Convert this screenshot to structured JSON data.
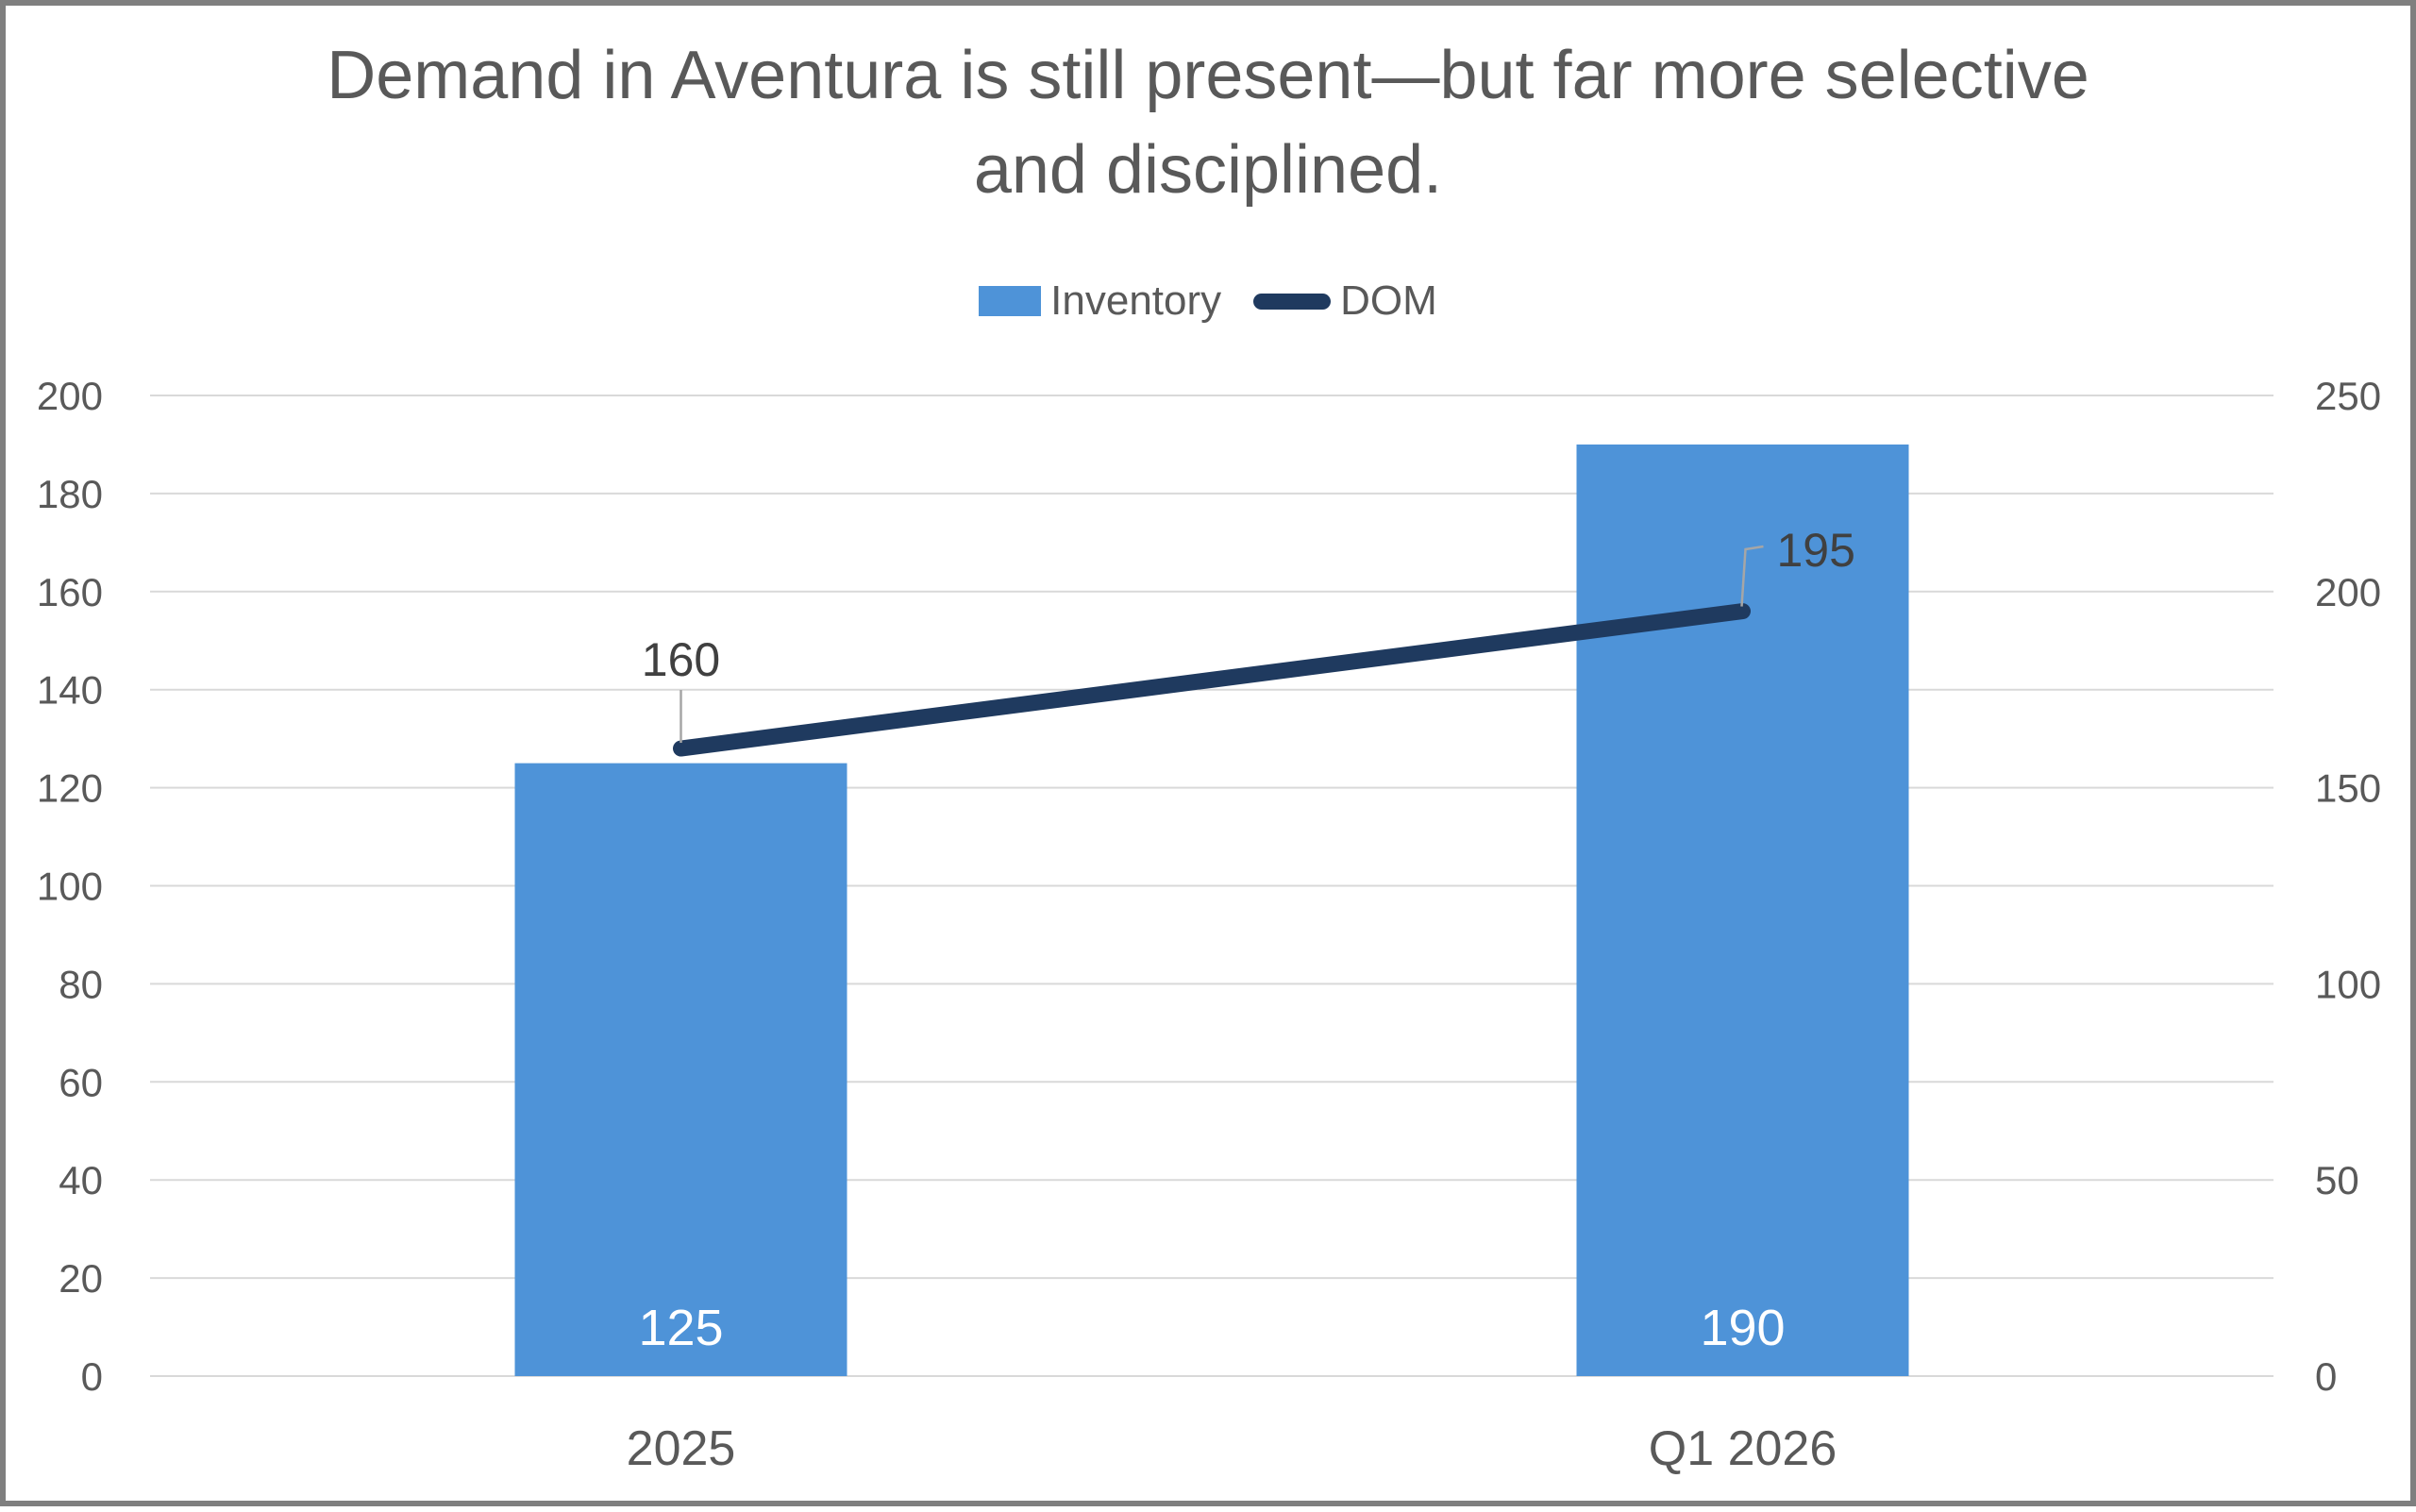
{
  "frame": {
    "border_color": "#7f7f7f",
    "background": "#ffffff"
  },
  "chart_data": {
    "type": "combo-bar-line",
    "title": "Demand in Aventura is still present—but far more selective and disciplined.",
    "title_color": "#595959",
    "categories": [
      "2025",
      "Q1 2026"
    ],
    "series": [
      {
        "name": "Inventory",
        "type": "bar",
        "axis": "left",
        "values": [
          125,
          190
        ],
        "value_labels": [
          "125",
          "190"
        ],
        "color": "#4e93d8",
        "label_color": "#ffffff"
      },
      {
        "name": "DOM",
        "type": "line",
        "axis": "right",
        "values": [
          160,
          195
        ],
        "value_labels": [
          "160",
          "195"
        ],
        "color": "#1f3a5f",
        "label_color": "#404040"
      }
    ],
    "left_axis": {
      "min": 0,
      "max": 200,
      "step": 20,
      "ticks": [
        "0",
        "20",
        "40",
        "60",
        "80",
        "100",
        "120",
        "140",
        "160",
        "180",
        "200"
      ]
    },
    "right_axis": {
      "min": 0,
      "max": 250,
      "step": 50,
      "ticks": [
        "0",
        "50",
        "100",
        "150",
        "200",
        "250"
      ]
    },
    "legend": [
      "Inventory",
      "DOM"
    ],
    "legend_position": "top",
    "grid": true,
    "gridline_color": "#d9d9d9",
    "tick_label_color": "#595959",
    "leader_line_color": "#a6a6a6"
  }
}
